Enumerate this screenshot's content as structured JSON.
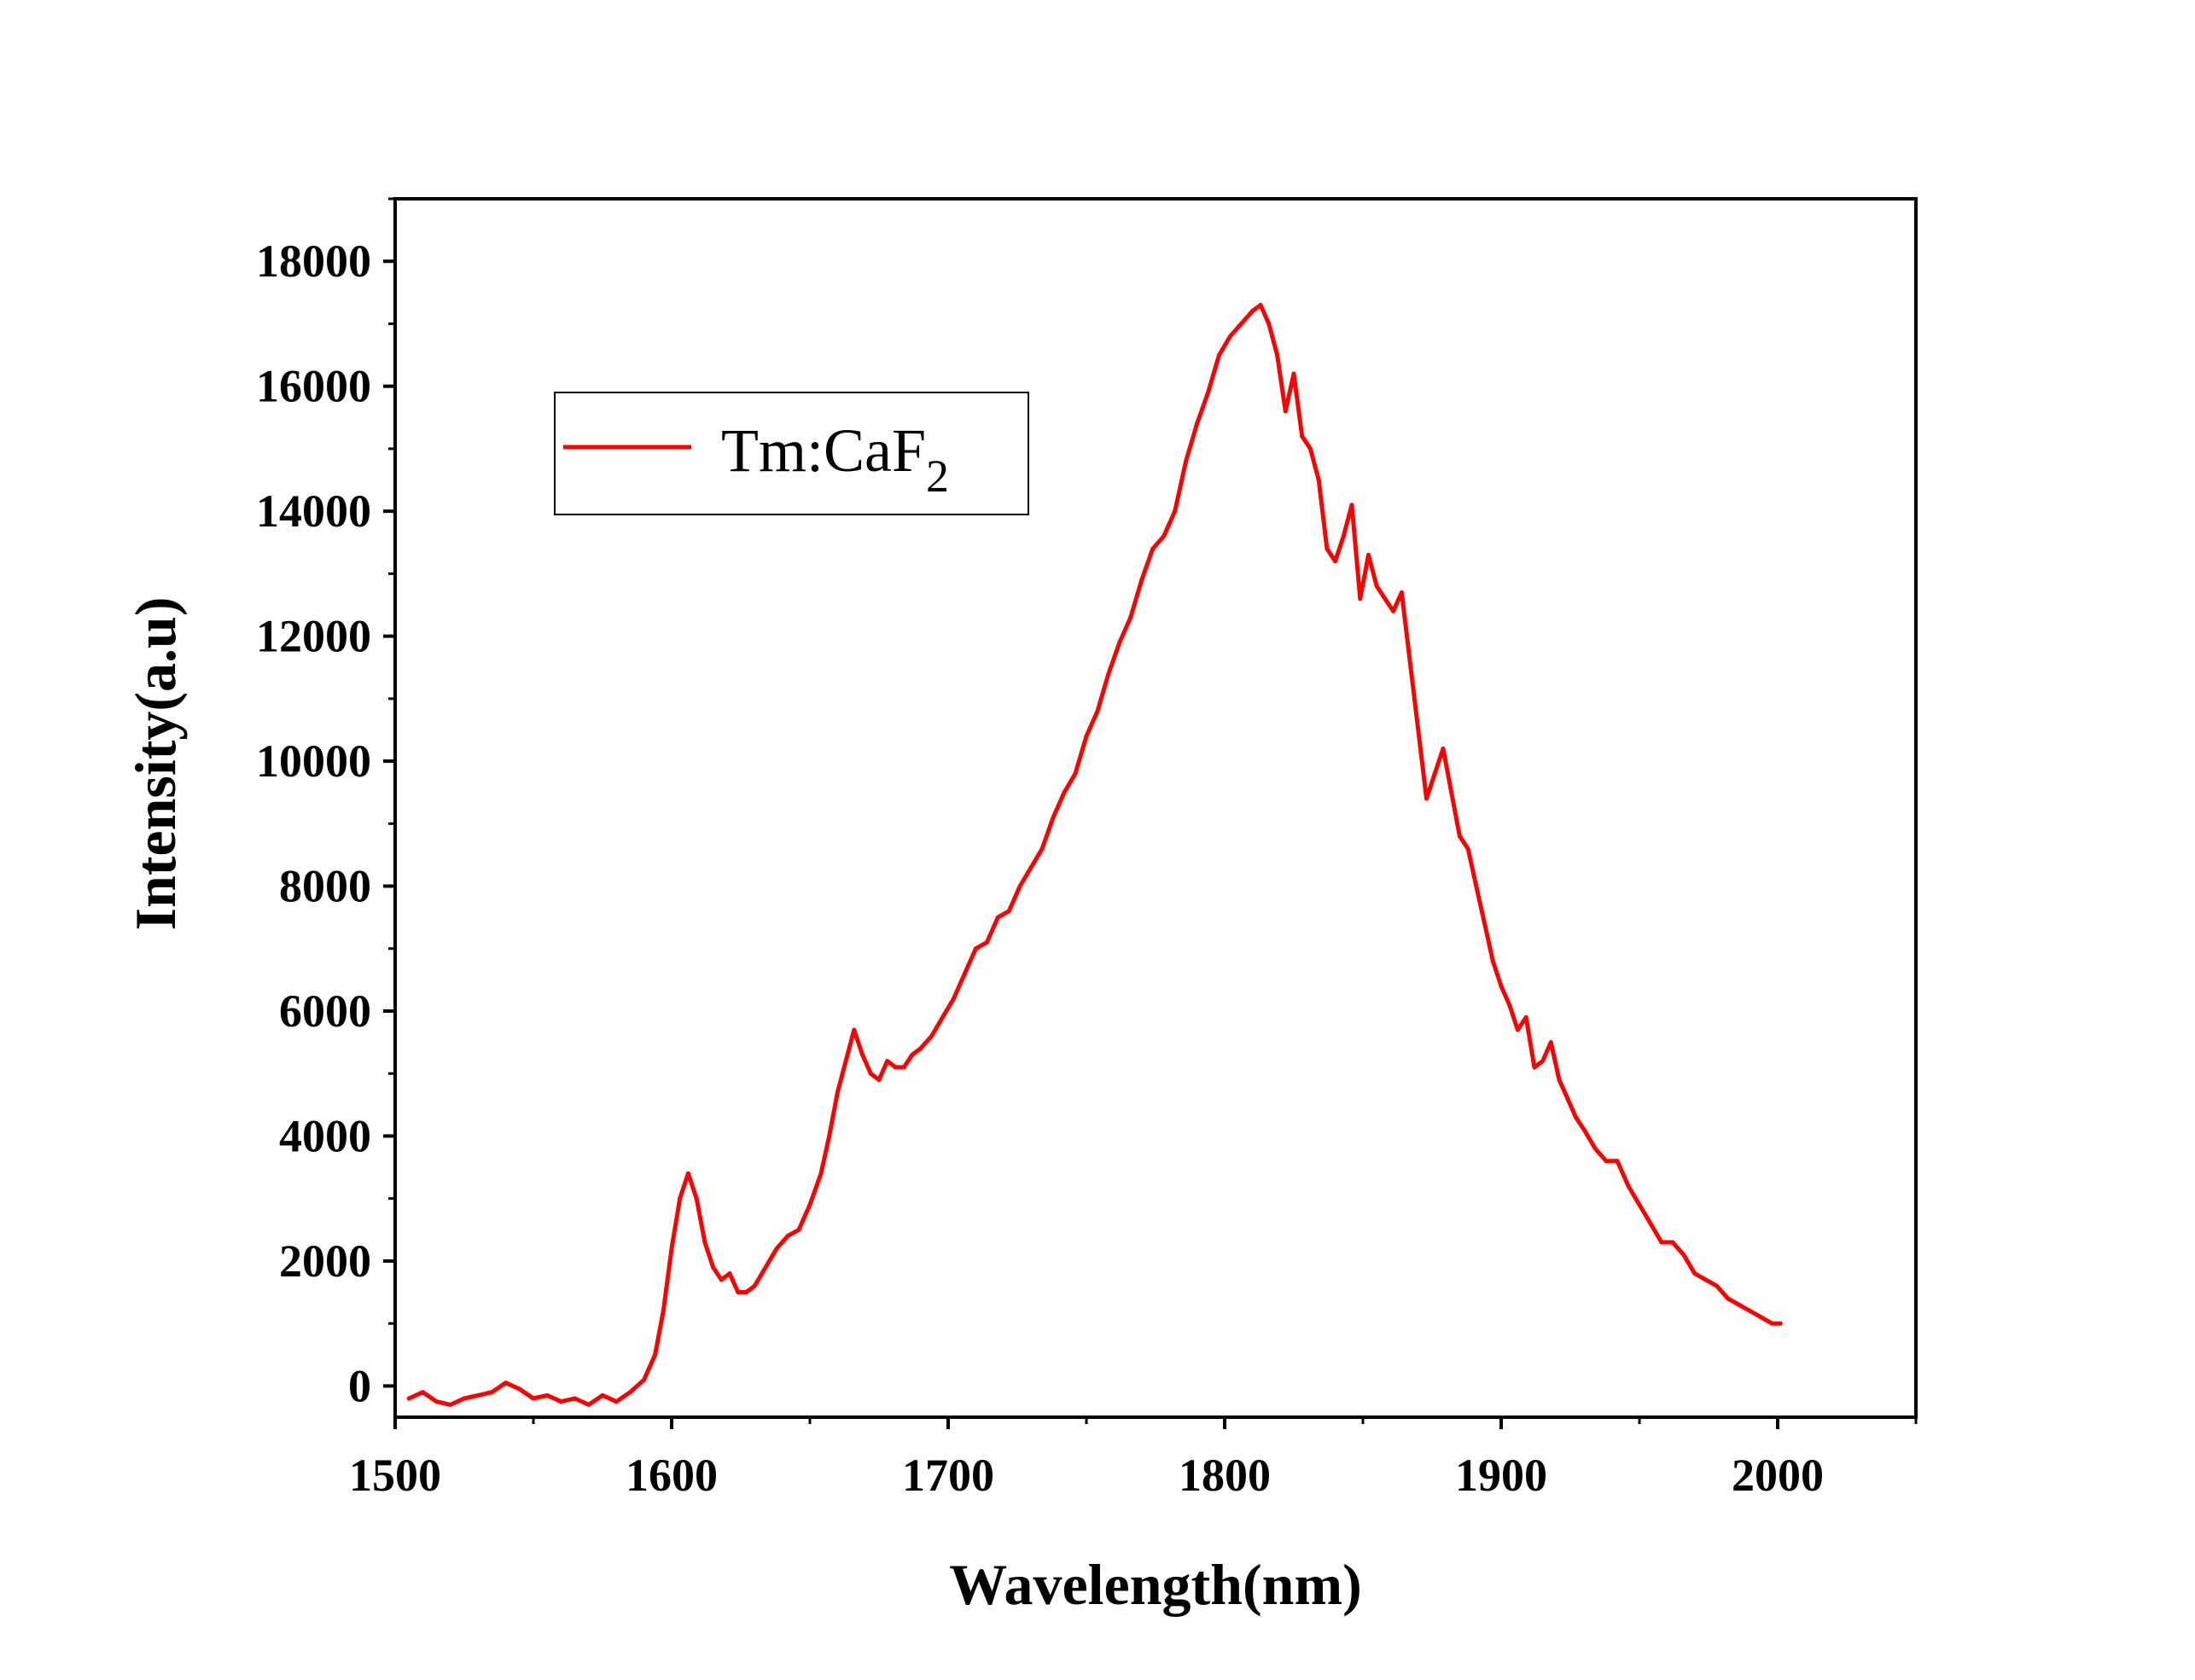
{
  "chart_data": {
    "type": "line",
    "xlabel": "Wavelength(nm)",
    "ylabel": "Intensity(a.u)",
    "xlim": [
      1500,
      2050
    ],
    "ylim": [
      -500,
      19000
    ],
    "x_ticks": [
      1500,
      1600,
      1700,
      1800,
      1900,
      2000
    ],
    "y_ticks": [
      0,
      2000,
      4000,
      6000,
      8000,
      10000,
      12000,
      14000,
      16000,
      18000
    ],
    "grid": false,
    "legend_position": "upper-left",
    "series": [
      {
        "name": "Tm:CaF",
        "name_subscript": "2",
        "color": "#ff0000",
        "x": [
          1505,
          1510,
          1515,
          1520,
          1525,
          1530,
          1535,
          1540,
          1545,
          1550,
          1555,
          1560,
          1565,
          1570,
          1575,
          1580,
          1585,
          1590,
          1594,
          1597,
          1600,
          1603,
          1606,
          1609,
          1612,
          1615,
          1618,
          1621,
          1624,
          1627,
          1630,
          1634,
          1638,
          1642,
          1646,
          1650,
          1654,
          1657,
          1660,
          1663,
          1666,
          1669,
          1672,
          1675,
          1678,
          1681,
          1684,
          1687,
          1690,
          1694,
          1698,
          1702,
          1706,
          1710,
          1714,
          1718,
          1722,
          1726,
          1730,
          1734,
          1738,
          1742,
          1746,
          1750,
          1754,
          1758,
          1762,
          1766,
          1770,
          1774,
          1778,
          1782,
          1786,
          1790,
          1794,
          1798,
          1802,
          1806,
          1810,
          1813,
          1816,
          1819,
          1822,
          1825,
          1828,
          1831,
          1834,
          1837,
          1840,
          1843,
          1846,
          1849,
          1852,
          1855,
          1858,
          1861,
          1864,
          1867,
          1870,
          1873,
          1876,
          1879,
          1882,
          1885,
          1888,
          1891,
          1894,
          1897,
          1900,
          1903,
          1906,
          1909,
          1912,
          1915,
          1918,
          1921,
          1924,
          1927,
          1930,
          1934,
          1938,
          1942,
          1946,
          1950,
          1954,
          1958,
          1962,
          1966,
          1970,
          1974,
          1978,
          1982,
          1986,
          1990,
          1994,
          1998,
          2001
        ],
        "y": [
          -200,
          -100,
          -250,
          -300,
          -200,
          -150,
          -100,
          50,
          -50,
          -200,
          -150,
          -250,
          -200,
          -300,
          -150,
          -250,
          -100,
          100,
          500,
          1200,
          2200,
          3000,
          3400,
          3000,
          2300,
          1900,
          1700,
          1800,
          1500,
          1500,
          1600,
          1900,
          2200,
          2400,
          2500,
          2900,
          3400,
          4000,
          4700,
          5200,
          5700,
          5300,
          5000,
          4900,
          5200,
          5100,
          5100,
          5300,
          5400,
          5600,
          5900,
          6200,
          6600,
          7000,
          7100,
          7500,
          7600,
          8000,
          8300,
          8600,
          9100,
          9500,
          9800,
          10400,
          10800,
          11400,
          11900,
          12300,
          12900,
          13400,
          13600,
          14000,
          14800,
          15400,
          15900,
          16500,
          16800,
          17000,
          17200,
          17300,
          17000,
          16500,
          15600,
          16200,
          15200,
          15000,
          14500,
          13400,
          13200,
          13600,
          14100,
          12600,
          13300,
          12800,
          12600,
          12400,
          12700,
          11600,
          10500,
          9400,
          9800,
          10200,
          9500,
          8800,
          8600,
          8000,
          7400,
          6800,
          6400,
          6100,
          5700,
          5900,
          5100,
          5200,
          5500,
          4900,
          4600,
          4300,
          4100,
          3800,
          3600,
          3600,
          3200,
          2900,
          2600,
          2300,
          2300,
          2100,
          1800,
          1700,
          1600,
          1400,
          1300,
          1200,
          1100,
          1000,
          1000
        ]
      }
    ]
  }
}
